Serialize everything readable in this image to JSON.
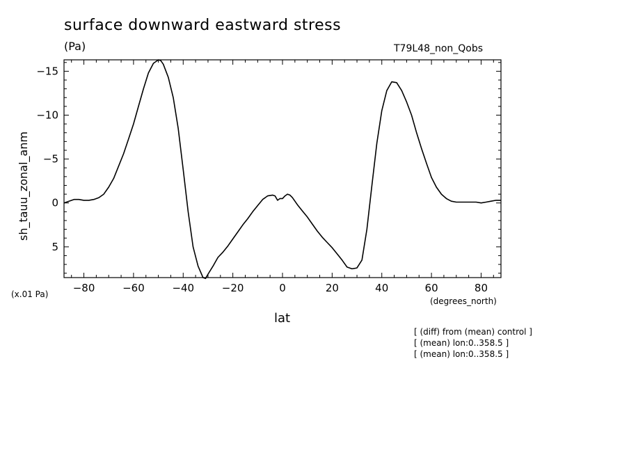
{
  "page": {
    "title": "surface downward eastward stress",
    "units": "(Pa)",
    "run_label": "T79L48_non_Qobs",
    "scale_note": "(x.01 Pa)",
    "x_unit": "(degrees_north)",
    "notes": [
      "[ (diff) from (mean) control ]",
      "[ (mean) lon:0..358.5 ]",
      "[ (mean) lon:0..358.5 ]"
    ]
  },
  "chart_data": {
    "type": "line",
    "title": "surface downward eastward stress",
    "xlabel": "lat",
    "ylabel": "sh_tauu_zonal_anm",
    "xlim": [
      -88,
      88
    ],
    "ylim": [
      -16.3,
      8.5
    ],
    "y_inverted": true,
    "grid": false,
    "line_color": "#000000",
    "x_ticks": [
      -80,
      -60,
      -40,
      -20,
      0,
      20,
      40,
      60,
      80
    ],
    "x_tick_labels": [
      "−80",
      "−60",
      "−40",
      "−20",
      "0",
      "20",
      "40",
      "60",
      "80"
    ],
    "y_ticks": [
      -15,
      -10,
      -5,
      0,
      5
    ],
    "y_tick_labels": [
      "−15",
      "−10",
      "−5",
      "0",
      "5"
    ],
    "series": [
      {
        "x": [
          -88,
          -86,
          -84,
          -82,
          -80,
          -78,
          -76,
          -74,
          -72,
          -70,
          -68,
          -66,
          -64,
          -62,
          -60,
          -58,
          -56,
          -54,
          -52,
          -50,
          -49,
          -48,
          -46,
          -44,
          -42,
          -40,
          -38,
          -36,
          -34,
          -32,
          -31,
          -30,
          -28,
          -26,
          -24,
          -22,
          -20,
          -18,
          -16,
          -14,
          -12,
          -10,
          -8,
          -6,
          -4,
          -3,
          -2,
          -1,
          0,
          1,
          2,
          3,
          4,
          6,
          8,
          10,
          12,
          14,
          16,
          18,
          20,
          22,
          24,
          26,
          28,
          30,
          32,
          34,
          36,
          38,
          40,
          42,
          44,
          46,
          48,
          50,
          52,
          54,
          56,
          58,
          60,
          62,
          64,
          66,
          68,
          70,
          72,
          74,
          76,
          78,
          80,
          82,
          84,
          86,
          88
        ],
        "y": [
          0.0,
          -0.2,
          -0.4,
          -0.4,
          -0.3,
          -0.3,
          -0.4,
          -0.6,
          -1.0,
          -1.8,
          -2.8,
          -4.2,
          -5.6,
          -7.3,
          -9.0,
          -11.0,
          -13.0,
          -14.8,
          -15.9,
          -16.3,
          -16.2,
          -15.8,
          -14.3,
          -12.0,
          -8.5,
          -3.8,
          1.0,
          5.0,
          7.2,
          8.5,
          8.6,
          8.1,
          7.2,
          6.2,
          5.6,
          4.9,
          4.1,
          3.3,
          2.5,
          1.8,
          1.0,
          0.3,
          -0.4,
          -0.8,
          -0.9,
          -0.8,
          -0.3,
          -0.5,
          -0.5,
          -0.8,
          -1.0,
          -0.9,
          -0.6,
          0.2,
          0.9,
          1.6,
          2.4,
          3.2,
          3.9,
          4.5,
          5.1,
          5.8,
          6.5,
          7.3,
          7.5,
          7.4,
          6.5,
          3.0,
          -2.0,
          -6.8,
          -10.5,
          -12.8,
          -13.8,
          -13.7,
          -12.8,
          -11.5,
          -10.0,
          -8.0,
          -6.2,
          -4.5,
          -2.9,
          -1.8,
          -1.0,
          -0.5,
          -0.2,
          -0.1,
          -0.1,
          -0.1,
          -0.1,
          -0.1,
          0.0,
          -0.1,
          -0.2,
          -0.3,
          -0.3
        ]
      }
    ]
  }
}
